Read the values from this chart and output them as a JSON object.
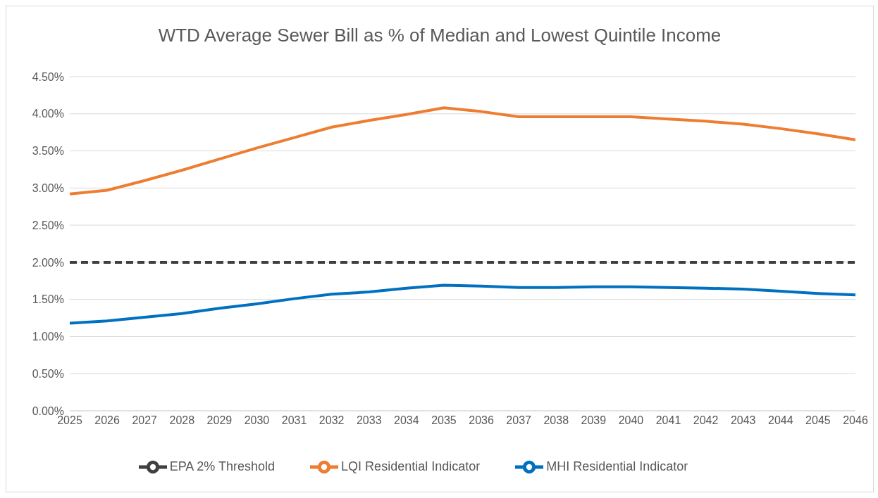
{
  "chart_data": {
    "type": "line",
    "title": "WTD Average Sewer Bill as % of Median and Lowest Quintile Income",
    "categories": [
      "2025",
      "2026",
      "2027",
      "2028",
      "2029",
      "2030",
      "2031",
      "2032",
      "2033",
      "2034",
      "2035",
      "2036",
      "2037",
      "2038",
      "2039",
      "2040",
      "2041",
      "2042",
      "2043",
      "2044",
      "2045",
      "2046"
    ],
    "series": [
      {
        "name": "MHI Residential Indicator",
        "color": "#0070c0",
        "line_style": "solid",
        "values": [
          1.18,
          1.21,
          1.26,
          1.31,
          1.38,
          1.44,
          1.51,
          1.57,
          1.6,
          1.65,
          1.69,
          1.68,
          1.66,
          1.66,
          1.67,
          1.67,
          1.66,
          1.65,
          1.64,
          1.61,
          1.58,
          1.56
        ]
      },
      {
        "name": "LQI Residential Indicator",
        "color": "#ed7d31",
        "line_style": "solid",
        "values": [
          2.92,
          2.97,
          3.1,
          3.24,
          3.39,
          3.54,
          3.68,
          3.82,
          3.91,
          3.99,
          4.08,
          4.03,
          3.96,
          3.96,
          3.96,
          3.96,
          3.93,
          3.9,
          3.86,
          3.8,
          3.73,
          3.65
        ]
      },
      {
        "name": "EPA 2% Threshold",
        "color": "#404040",
        "line_style": "dashed",
        "values": [
          2,
          2,
          2,
          2,
          2,
          2,
          2,
          2,
          2,
          2,
          2,
          2,
          2,
          2,
          2,
          2,
          2,
          2,
          2,
          2,
          2,
          2
        ]
      }
    ],
    "ylim": [
      0,
      4.5
    ],
    "yticks": [
      {
        "value": 0,
        "label": "0.00%"
      },
      {
        "value": 0.5,
        "label": "0.50%"
      },
      {
        "value": 1,
        "label": "1.00%"
      },
      {
        "value": 1.5,
        "label": "1.50%"
      },
      {
        "value": 2,
        "label": "2.00%"
      },
      {
        "value": 2.5,
        "label": "2.50%"
      },
      {
        "value": 3,
        "label": "3.00%"
      },
      {
        "value": 3.5,
        "label": "3.50%"
      },
      {
        "value": 4,
        "label": "4.00%"
      },
      {
        "value": 4.5,
        "label": "4.50%"
      }
    ],
    "grid": "y",
    "legend": "bottom",
    "marker": "none"
  }
}
